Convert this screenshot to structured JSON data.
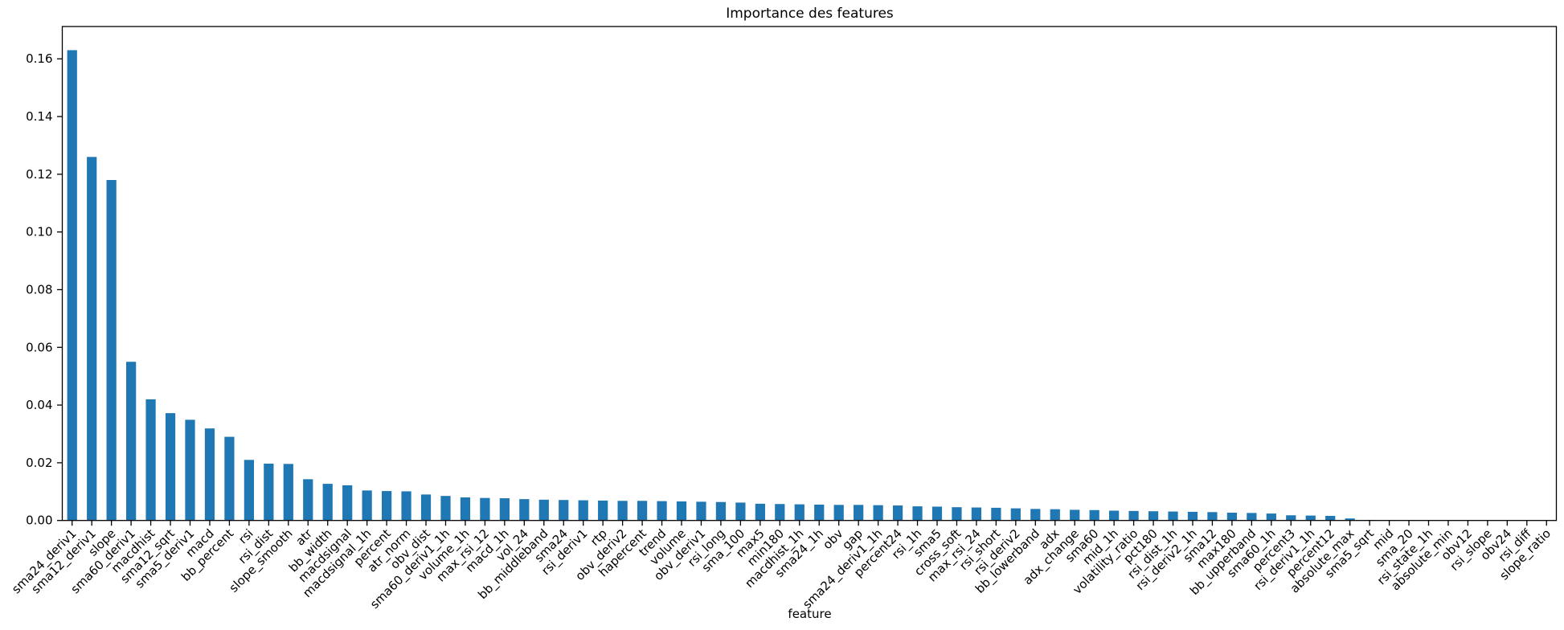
{
  "chart_data": {
    "type": "bar",
    "title": "Importance des features",
    "xlabel": "feature",
    "ylabel": "",
    "legend": null,
    "grid": false,
    "ylim": [
      0,
      0.1712
    ],
    "yticks": [
      0,
      0.02,
      0.04,
      0.06,
      0.08,
      0.1,
      0.12,
      0.14,
      0.16
    ],
    "ytick_labels": [
      "0.00",
      "0.02",
      "0.04",
      "0.06",
      "0.08",
      "0.10",
      "0.12",
      "0.14",
      "0.16"
    ],
    "categories": [
      "sma24_deriv1",
      "sma12_deriv1",
      "slope",
      "sma60_deriv1",
      "macdhist",
      "sma12_sqrt",
      "sma5_deriv1",
      "macd",
      "bb_percent",
      "rsi",
      "rsi_dist",
      "slope_smooth",
      "atr",
      "bb_width",
      "macdsignal",
      "macdsignal_1h",
      "percent",
      "atr_norm",
      "obv_dist",
      "sma60_deriv1_1h",
      "volume_1h",
      "max_rsi_12",
      "macd_1h",
      "vol_24",
      "bb_middleband",
      "sma24",
      "rsi_deriv1",
      "rtp",
      "obv_deriv2",
      "hapercent",
      "trend",
      "volume",
      "obv_deriv1",
      "rsi_long",
      "sma_100",
      "max5",
      "min180",
      "macdhist_1h",
      "sma24_1h",
      "obv",
      "gap",
      "sma24_deriv1_1h",
      "percent24",
      "rsi_1h",
      "sma5",
      "cross_soft",
      "max_rsi_24",
      "rsi_short",
      "rsi_deriv2",
      "bb_lowerband",
      "adx",
      "adx_change",
      "sma60",
      "mid_1h",
      "volatility_ratio",
      "pct180",
      "rsi_dist_1h",
      "rsi_deriv2_1h",
      "sma12",
      "max180",
      "bb_upperband",
      "sma60_1h",
      "percent3",
      "rsi_deriv1_1h",
      "percent12",
      "absolute_max",
      "sma5_sqrt",
      "mid",
      "sma_20",
      "rsi_state_1h",
      "absolute_min",
      "obv12",
      "rsi_slope",
      "obv24",
      "rsi_diff",
      "slope_ratio"
    ],
    "values": [
      0.163,
      0.126,
      0.118,
      0.055,
      0.042,
      0.0372,
      0.0349,
      0.0319,
      0.029,
      0.021,
      0.0197,
      0.0196,
      0.0143,
      0.0127,
      0.0122,
      0.0104,
      0.0102,
      0.0101,
      0.009,
      0.0085,
      0.008,
      0.0078,
      0.0077,
      0.0074,
      0.0072,
      0.0071,
      0.007,
      0.0069,
      0.0068,
      0.0068,
      0.0067,
      0.0066,
      0.0065,
      0.0064,
      0.0062,
      0.0058,
      0.0057,
      0.0056,
      0.0055,
      0.0054,
      0.0054,
      0.0053,
      0.0052,
      0.0049,
      0.0048,
      0.0046,
      0.0045,
      0.0044,
      0.0042,
      0.004,
      0.0039,
      0.0037,
      0.0036,
      0.0034,
      0.0033,
      0.0032,
      0.0031,
      0.003,
      0.0029,
      0.0027,
      0.0026,
      0.0024,
      0.0018,
      0.0017,
      0.0016,
      0.0007,
      0.0002,
      0.0001,
      0.0001,
      5e-05,
      4e-05,
      3e-05,
      2e-05,
      2e-05,
      1e-05,
      1e-05
    ],
    "colors": {
      "bar": "#1f77b4",
      "axis": "#000000",
      "text": "#000000",
      "background": "#ffffff"
    }
  }
}
